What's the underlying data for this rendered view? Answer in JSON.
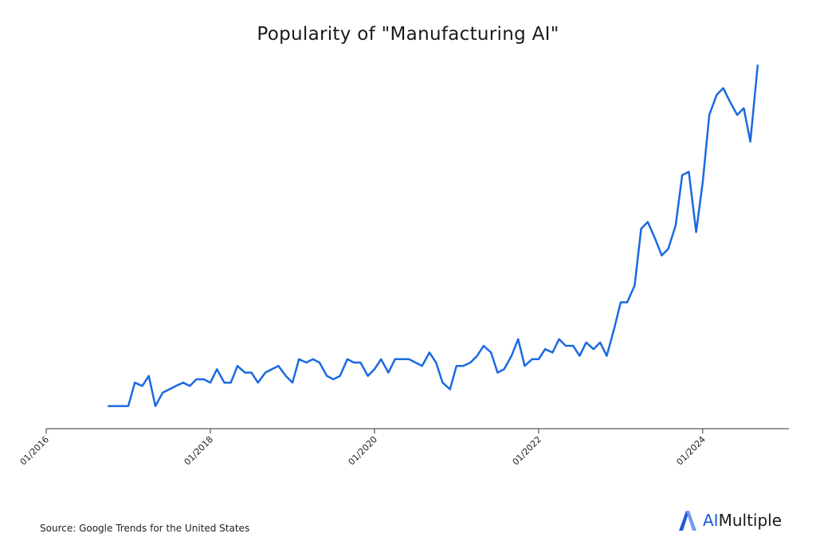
{
  "chart_data": {
    "type": "line",
    "title": "Popularity of \"Manufacturing AI\"",
    "xlabel": "",
    "ylabel": "",
    "x_ticks": [
      "01/2016",
      "01/2018",
      "01/2020",
      "01/2022",
      "01/2024"
    ],
    "x_tick_years": [
      2016,
      2018,
      2020,
      2022,
      2024
    ],
    "xlim": [
      2016.0,
      2025.05
    ],
    "ylim": [
      0,
      100
    ],
    "grid": false,
    "line_color": "#1a6ae0",
    "series": [
      {
        "x": [
          2016.75,
          2016.83,
          2016.92,
          2017.0,
          2017.08,
          2017.17,
          2017.25,
          2017.33,
          2017.42,
          2017.5,
          2017.58,
          2017.67,
          2017.75,
          2017.83,
          2017.92,
          2018.0,
          2018.08,
          2018.17,
          2018.25,
          2018.33,
          2018.42,
          2018.5,
          2018.58,
          2018.67,
          2018.75,
          2018.83,
          2018.92,
          2019.0,
          2019.08,
          2019.17,
          2019.25,
          2019.33,
          2019.42,
          2019.5,
          2019.58,
          2019.67,
          2019.75,
          2019.83,
          2019.92,
          2020.0,
          2020.08,
          2020.17,
          2020.25,
          2020.33,
          2020.42,
          2020.5,
          2020.58,
          2020.67,
          2020.75,
          2020.83,
          2020.92,
          2021.0,
          2021.08,
          2021.17,
          2021.25,
          2021.33,
          2021.42,
          2021.5,
          2021.58,
          2021.67,
          2021.75,
          2021.83,
          2021.92,
          2022.0,
          2022.08,
          2022.17,
          2022.25,
          2022.33,
          2022.42,
          2022.5,
          2022.58,
          2022.67,
          2022.75,
          2022.83,
          2022.92,
          2023.0,
          2023.08,
          2023.17,
          2023.25,
          2023.33,
          2023.42,
          2023.5,
          2023.58,
          2023.67,
          2023.75,
          2023.83,
          2023.92,
          2024.0,
          2024.08,
          2024.17,
          2024.25,
          2024.33,
          2024.42,
          2024.5,
          2024.58,
          2024.67
        ],
        "values": [
          2,
          2,
          2,
          2,
          9,
          8,
          11,
          2,
          6,
          7,
          8,
          9,
          8,
          10,
          10,
          9,
          13,
          9,
          9,
          14,
          12,
          12,
          9,
          12,
          13,
          14,
          11,
          9,
          16,
          15,
          16,
          15,
          11,
          10,
          11,
          16,
          15,
          15,
          11,
          13,
          16,
          12,
          16,
          16,
          16,
          15,
          14,
          18,
          15,
          9,
          7,
          14,
          14,
          15,
          17,
          20,
          18,
          12,
          13,
          17,
          22,
          14,
          16,
          16,
          19,
          18,
          22,
          20,
          20,
          17,
          21,
          19,
          21,
          17,
          25,
          33,
          33,
          38,
          55,
          57,
          52,
          47,
          49,
          56,
          71,
          72,
          54,
          69,
          89,
          95,
          97,
          93,
          89,
          91,
          81,
          104
        ]
      }
    ]
  },
  "source": "Source: Google Trends for the United States",
  "brand": {
    "prefix": "AI",
    "suffix": "Multiple",
    "accent": "#1f5ad6"
  }
}
